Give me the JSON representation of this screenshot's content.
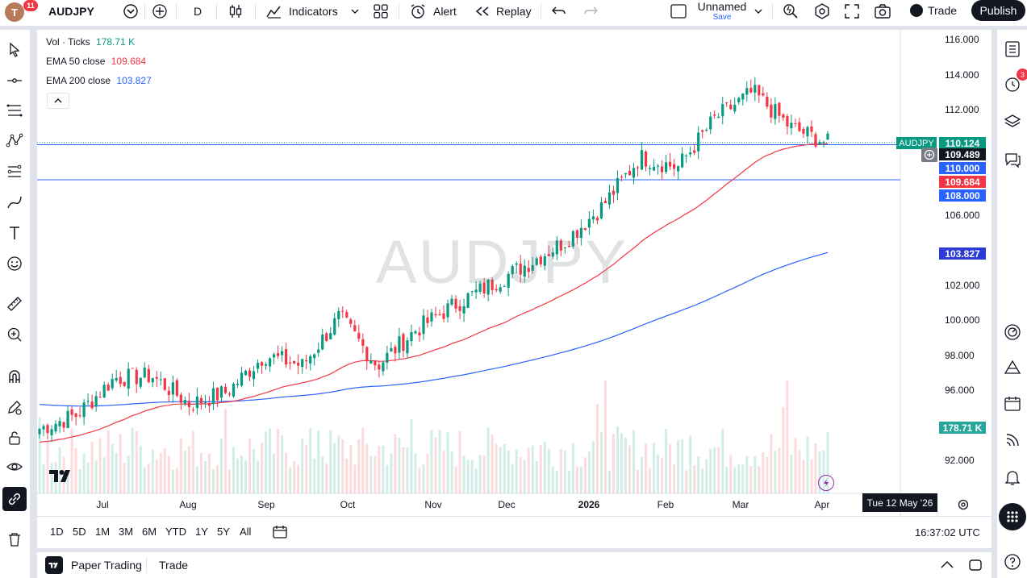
{
  "topbar": {
    "avatar_letter": "T",
    "notifications_count": "11",
    "symbol": "AUDJPY",
    "interval": "D",
    "indicators_label": "Indicators",
    "alert_label": "Alert",
    "replay_label": "Replay",
    "layout_name": "Unnamed",
    "layout_save": "Save",
    "trade_label": "Trade",
    "publish_label": "Publish"
  },
  "legend": {
    "vol_label": "Vol · Ticks",
    "vol_value": "178.71 K",
    "ema50_label": "EMA 50 close",
    "ema50_value": "109.684",
    "ema200_label": "EMA 200 close",
    "ema200_value": "103.827"
  },
  "watermark": "AUDJPY",
  "price_axis": {
    "ticks": [
      "116.000",
      "114.000",
      "112.000",
      "106.000",
      "102.000",
      "100.000",
      "98.000",
      "96.000",
      "92.000"
    ],
    "symbol_tag": "AUDJPY",
    "last_price": "110.124",
    "crosshair_price": "109.489",
    "level_110": "110.000",
    "ema50_price": "109.684",
    "level_108": "108.000",
    "ema200_price": "103.827",
    "volume_tag": "178.71 K"
  },
  "time_axis": {
    "labels": [
      "Jul",
      "Aug",
      "Sep",
      "Oct",
      "Nov",
      "Dec",
      "2026",
      "Feb",
      "Mar",
      "Apr"
    ],
    "crosshair_date": "Tue 12 May '26"
  },
  "bottombar": {
    "ranges": [
      "1D",
      "5D",
      "1M",
      "3M",
      "6M",
      "YTD",
      "1Y",
      "5Y",
      "All"
    ],
    "clock": "16:37:02 UTC"
  },
  "panel": {
    "paper_trading": "Paper Trading",
    "trade": "Trade"
  },
  "right_alerts_badge": "3",
  "colors": {
    "up": "#089981",
    "down": "#f23645",
    "ema50": "#f23645",
    "ema200": "#2962ff",
    "level_line": "#2962ff",
    "last_price_bg": "#089981",
    "volume_tag_bg": "#26a69a"
  },
  "chart_data": {
    "type": "candlestick",
    "symbol": "AUDJPY",
    "interval": "D",
    "y_range": [
      91,
      116.5
    ],
    "x_labels": [
      "Jul",
      "Aug",
      "Sep",
      "Oct",
      "Nov",
      "Dec",
      "2026",
      "Feb",
      "Mar",
      "Apr"
    ],
    "ema50_last": 109.684,
    "ema200_last": 103.827,
    "horizontal_levels": [
      110.0,
      108.0
    ],
    "last_price": 110.124,
    "volume_last": "178.71 K",
    "close_path": [
      {
        "t": "Jun",
        "close": 93.8
      },
      {
        "t": "Jul",
        "close": 94.6
      },
      {
        "t": "mid-Jul",
        "close": 96.7
      },
      {
        "t": "Aug",
        "close": 96.8
      },
      {
        "t": "mid-Aug",
        "close": 95.2
      },
      {
        "t": "Sep",
        "close": 95.9
      },
      {
        "t": "mid-Sep",
        "close": 98.0
      },
      {
        "t": "Oct",
        "close": 97.4
      },
      {
        "t": "early-Oct",
        "close": 100.2
      },
      {
        "t": "mid-Oct",
        "close": 97.4
      },
      {
        "t": "Nov",
        "close": 99.4
      },
      {
        "t": "mid-Nov",
        "close": 100.8
      },
      {
        "t": "Dec",
        "close": 102.0
      },
      {
        "t": "mid-Dec",
        "close": 103.2
      },
      {
        "t": "2026",
        "close": 104.5
      },
      {
        "t": "mid-Jan",
        "close": 106.5
      },
      {
        "t": "Feb",
        "close": 109.3
      },
      {
        "t": "mid-Feb",
        "close": 108.7
      },
      {
        "t": "Mar",
        "close": 111.5
      },
      {
        "t": "mid-Mar",
        "close": 113.0
      },
      {
        "t": "late-Mar",
        "close": 111.0
      },
      {
        "t": "Apr",
        "close": 110.1
      }
    ]
  }
}
